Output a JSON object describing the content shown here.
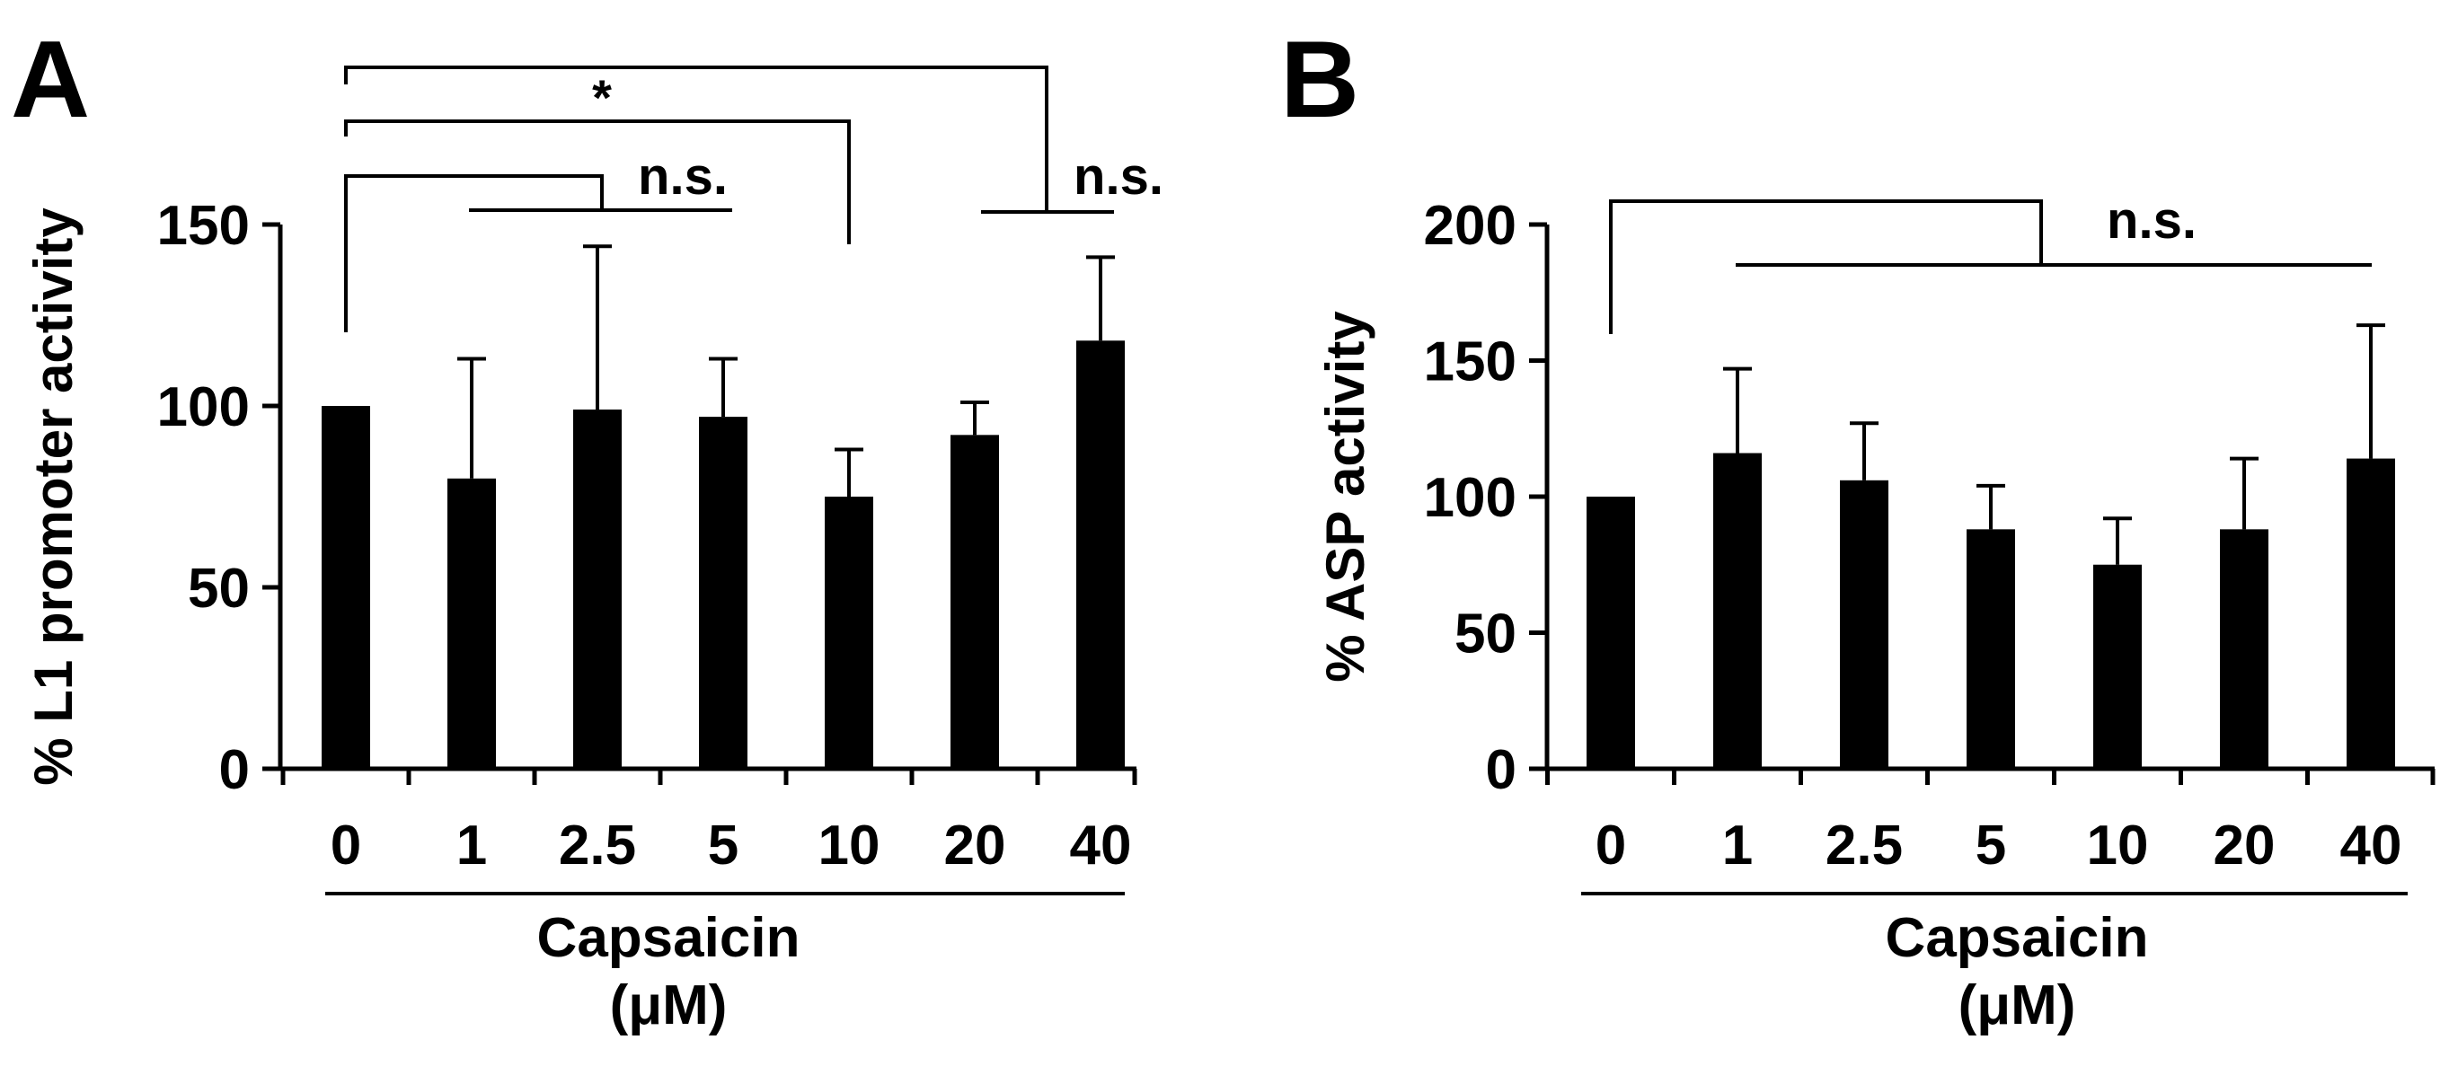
{
  "chart_data": [
    {
      "panel_label": "A",
      "type": "bar",
      "categories": [
        "0",
        "1",
        "2.5",
        "5",
        "10",
        "20",
        "40"
      ],
      "values": [
        100,
        80,
        99,
        97,
        75,
        92,
        118
      ],
      "error_plus": [
        0,
        33,
        45,
        16,
        13,
        9,
        23
      ],
      "ylabel": "% L1 promoter activity",
      "xlabel": "Capsaicin",
      "xunit": "(μM)",
      "ylim": [
        0,
        150
      ],
      "yticks": [
        "0",
        "50",
        "100",
        "150"
      ],
      "annotations": [
        {
          "text": "n.s.",
          "compare": [
            "0",
            "1, 2.5, 5"
          ]
        },
        {
          "text": "*",
          "compare": [
            "0",
            "10"
          ]
        },
        {
          "text": "n.s.",
          "compare": [
            "0",
            "20, 40"
          ]
        }
      ]
    },
    {
      "panel_label": "B",
      "type": "bar",
      "categories": [
        "0",
        "1",
        "2.5",
        "5",
        "10",
        "20",
        "40"
      ],
      "values": [
        100,
        116,
        106,
        88,
        75,
        88,
        114
      ],
      "error_plus": [
        0,
        31,
        21,
        16,
        17,
        26,
        49
      ],
      "ylabel": "% ASP activity",
      "xlabel": "Capsaicin",
      "xunit": "(μM)",
      "ylim": [
        0,
        200
      ],
      "yticks": [
        "0",
        "50",
        "100",
        "150",
        "200"
      ],
      "annotations": [
        {
          "text": "n.s.",
          "compare": [
            "0",
            "1–40"
          ]
        }
      ]
    }
  ]
}
